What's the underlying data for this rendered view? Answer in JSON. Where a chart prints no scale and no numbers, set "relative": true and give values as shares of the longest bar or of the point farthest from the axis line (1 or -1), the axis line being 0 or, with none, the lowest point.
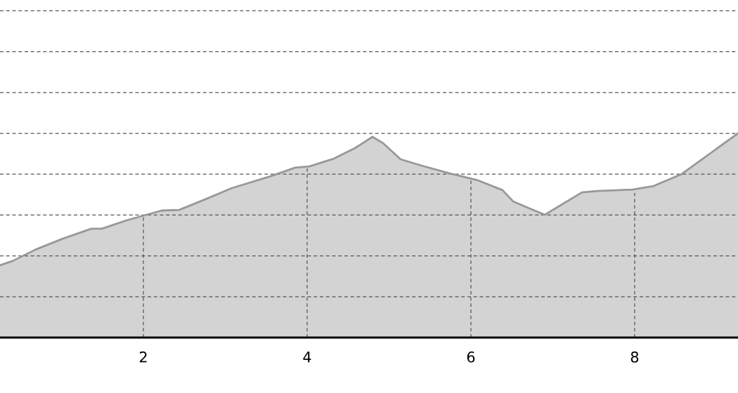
{
  "chart_data": {
    "type": "area",
    "relative": true,
    "color": "#d3d3d3",
    "x": [
      0.249,
      0.403,
      0.678,
      1.021,
      1.365,
      1.494,
      1.794,
      2.223,
      2.438,
      2.738,
      3.082,
      3.554,
      3.854,
      4.026,
      4.326,
      4.584,
      4.798,
      4.927,
      5.142,
      5.399,
      5.742,
      6.086,
      6.386,
      6.515,
      6.901,
      7.116,
      7.356,
      7.545,
      7.974,
      8.232,
      8.575,
      8.833,
      9.262
    ],
    "values": [
      0.354,
      0.375,
      0.43,
      0.485,
      0.533,
      0.533,
      0.574,
      0.622,
      0.625,
      0.674,
      0.732,
      0.79,
      0.832,
      0.838,
      0.876,
      0.928,
      0.983,
      0.952,
      0.873,
      0.842,
      0.804,
      0.77,
      0.722,
      0.667,
      0.601,
      0.653,
      0.711,
      0.718,
      0.725,
      0.742,
      0.801,
      0.876,
      1.0
    ],
    "xlim": [
      0.249,
      9.262
    ],
    "xticks": [
      2,
      4,
      6,
      8
    ],
    "grid": true,
    "tick_labels": "x"
  }
}
